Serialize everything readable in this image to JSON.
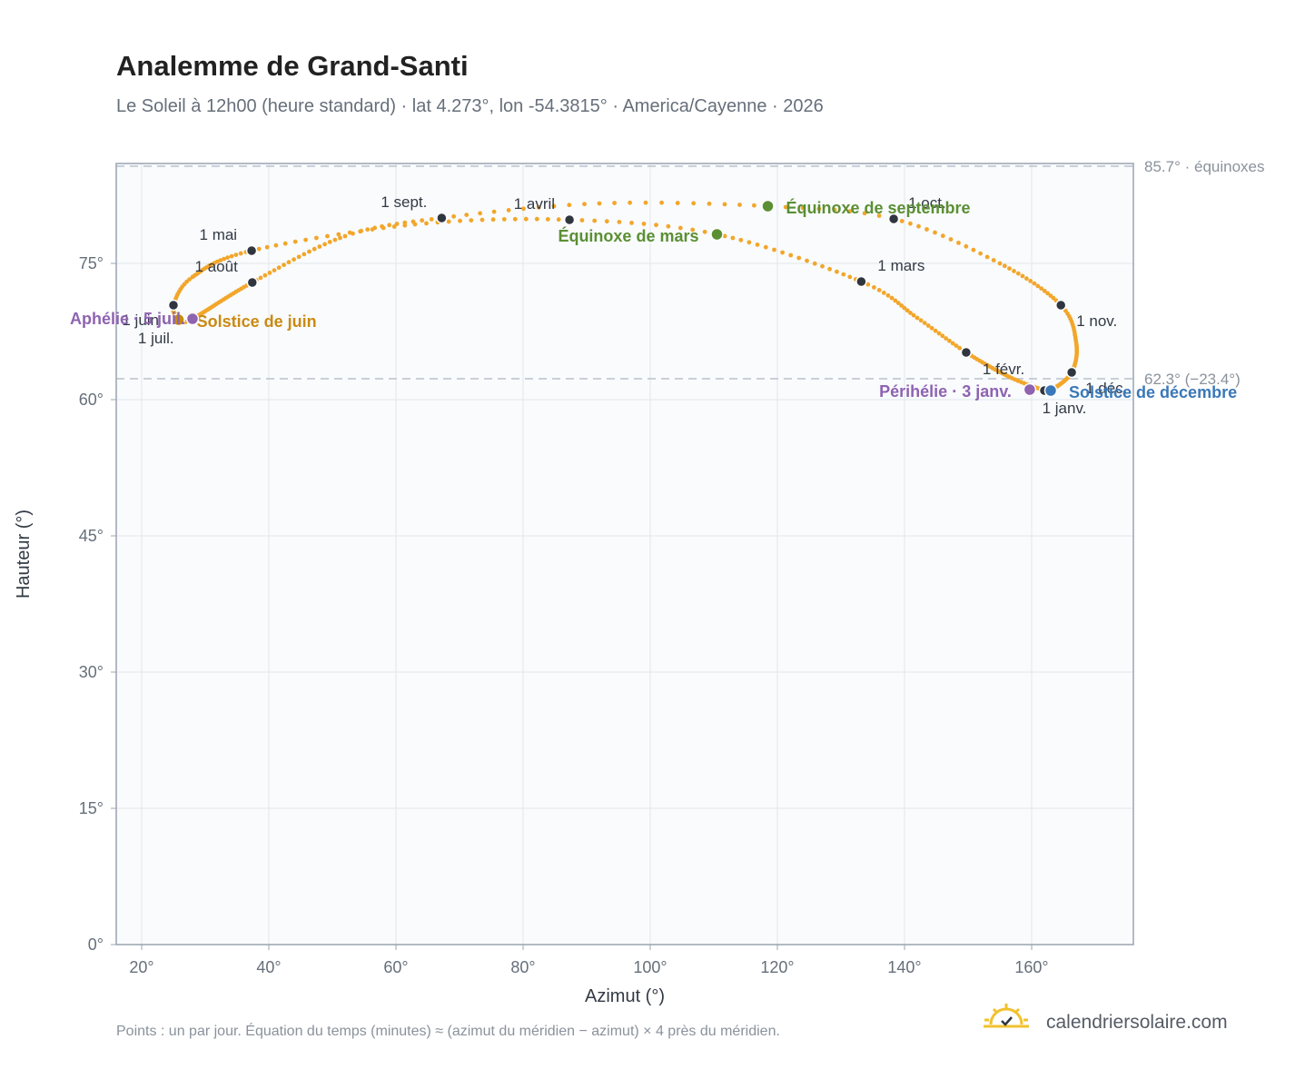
{
  "header": {
    "title": "Analemme de Grand-Santi",
    "subtitle": "Le Soleil à 12h00 (heure standard) · lat 4.273°, lon -54.3815° · America/Cayenne · 2026"
  },
  "footer": {
    "note": "Points : un par jour. Équation du temps (minutes) ≈ (azimut du méridien − azimut) × 4 près du méridien.",
    "brand": "calendriersolaire.com"
  },
  "colors": {
    "curve": "#f2a62a",
    "month_marker": "#2f3640",
    "equinox": "#5b8f33",
    "june_solstice": "#c98a12",
    "december_solstice": "#3a78b8",
    "apsis": "#8e63b0",
    "reference_line": "#b8c2cc",
    "plot_background": "#f9fbfd"
  },
  "chart_data": {
    "type": "scatter",
    "title": "Analemme de Grand-Santi",
    "xlabel": "Azimut (°)",
    "ylabel": "Hauteur (°)",
    "xlim": [
      16,
      176
    ],
    "ylim": [
      0,
      86
    ],
    "xticks": [
      20,
      40,
      60,
      80,
      100,
      120,
      140,
      160
    ],
    "xtick_labels": [
      "20°",
      "40°",
      "60°",
      "80°",
      "100°",
      "120°",
      "140°",
      "160°"
    ],
    "yticks": [
      0,
      15,
      30,
      45,
      60,
      75
    ],
    "ytick_labels": [
      "0°",
      "15°",
      "30°",
      "45°",
      "60°",
      "75°"
    ],
    "grid": true,
    "reference_lines": [
      {
        "y": 85.7,
        "label": "85.7° · équinoxes"
      },
      {
        "y": 62.3,
        "label": "62.3° (−23.4°)"
      }
    ],
    "series": [
      {
        "marker": "one point per day",
        "key_points": [
          {
            "date": "2026-01-01",
            "x": 162.0,
            "y": 61.0
          },
          {
            "date": "2026-01-15",
            "x": 156.5,
            "y": 62.5
          },
          {
            "date": "2026-02-01",
            "x": 149.7,
            "y": 65.2
          },
          {
            "date": "2026-02-15",
            "x": 142.0,
            "y": 69.0
          },
          {
            "date": "2026-03-01",
            "x": 133.2,
            "y": 73.0
          },
          {
            "date": "2026-03-20",
            "x": 110.5,
            "y": 78.2
          },
          {
            "date": "2026-04-01",
            "x": 87.3,
            "y": 79.8
          },
          {
            "date": "2026-04-15",
            "x": 63.0,
            "y": 79.3
          },
          {
            "date": "2026-05-01",
            "x": 37.3,
            "y": 76.4
          },
          {
            "date": "2026-05-20",
            "x": 28.0,
            "y": 73.5
          },
          {
            "date": "2026-06-01",
            "x": 25.0,
            "y": 70.4
          },
          {
            "date": "2026-06-21",
            "x": 25.8,
            "y": 68.8
          },
          {
            "date": "2026-07-01",
            "x": 25.8,
            "y": 68.6
          },
          {
            "date": "2026-07-05",
            "x": 28.0,
            "y": 68.9
          },
          {
            "date": "2026-08-01",
            "x": 37.4,
            "y": 72.9
          },
          {
            "date": "2026-08-20",
            "x": 52.0,
            "y": 78.0
          },
          {
            "date": "2026-09-01",
            "x": 67.2,
            "y": 80.0
          },
          {
            "date": "2026-09-12",
            "x": 92.0,
            "y": 81.6
          },
          {
            "date": "2026-09-23",
            "x": 118.5,
            "y": 81.3
          },
          {
            "date": "2026-10-01",
            "x": 138.3,
            "y": 79.9
          },
          {
            "date": "2026-10-15",
            "x": 155.0,
            "y": 75.0
          },
          {
            "date": "2026-11-01",
            "x": 164.6,
            "y": 70.4
          },
          {
            "date": "2026-11-15",
            "x": 167.0,
            "y": 66.3
          },
          {
            "date": "2026-12-01",
            "x": 166.3,
            "y": 63.0
          },
          {
            "date": "2026-12-21",
            "x": 163.0,
            "y": 61.0
          },
          {
            "date": "2027-01-01",
            "x": 162.0,
            "y": 61.0
          }
        ]
      }
    ],
    "month_markers": [
      {
        "label": "1 janv.",
        "x": 162.0,
        "y": 61.0
      },
      {
        "label": "1 févr.",
        "x": 149.7,
        "y": 65.2
      },
      {
        "label": "1 mars",
        "x": 133.2,
        "y": 73.0
      },
      {
        "label": "1 avril",
        "x": 87.3,
        "y": 79.8
      },
      {
        "label": "1 mai",
        "x": 37.3,
        "y": 76.4
      },
      {
        "label": "1 juin",
        "x": 25.0,
        "y": 70.4
      },
      {
        "label": "1 juil.",
        "x": 25.8,
        "y": 68.6
      },
      {
        "label": "1 août",
        "x": 37.4,
        "y": 72.9
      },
      {
        "label": "1 sept.",
        "x": 67.2,
        "y": 80.0
      },
      {
        "label": "1 oct.",
        "x": 138.3,
        "y": 79.9
      },
      {
        "label": "1 nov.",
        "x": 164.6,
        "y": 70.4
      },
      {
        "label": "1 déc.",
        "x": 166.3,
        "y": 63.0
      }
    ],
    "events": [
      {
        "label": "Équinoxe de mars",
        "x": 110.5,
        "y": 78.2,
        "color_key": "equinox"
      },
      {
        "label": "Équinoxe de septembre",
        "x": 118.5,
        "y": 81.3,
        "color_key": "equinox"
      },
      {
        "label": "Solstice de juin",
        "x": 25.8,
        "y": 68.8,
        "color_key": "june_solstice"
      },
      {
        "label": "Solstice de décembre",
        "x": 163.0,
        "y": 61.0,
        "color_key": "december_solstice"
      },
      {
        "label": "Aphélie · 5 juil.",
        "x": 28.0,
        "y": 68.9,
        "color_key": "apsis"
      },
      {
        "label": "Périhélie · 3 janv.",
        "x": 159.7,
        "y": 61.1,
        "color_key": "apsis"
      }
    ]
  }
}
